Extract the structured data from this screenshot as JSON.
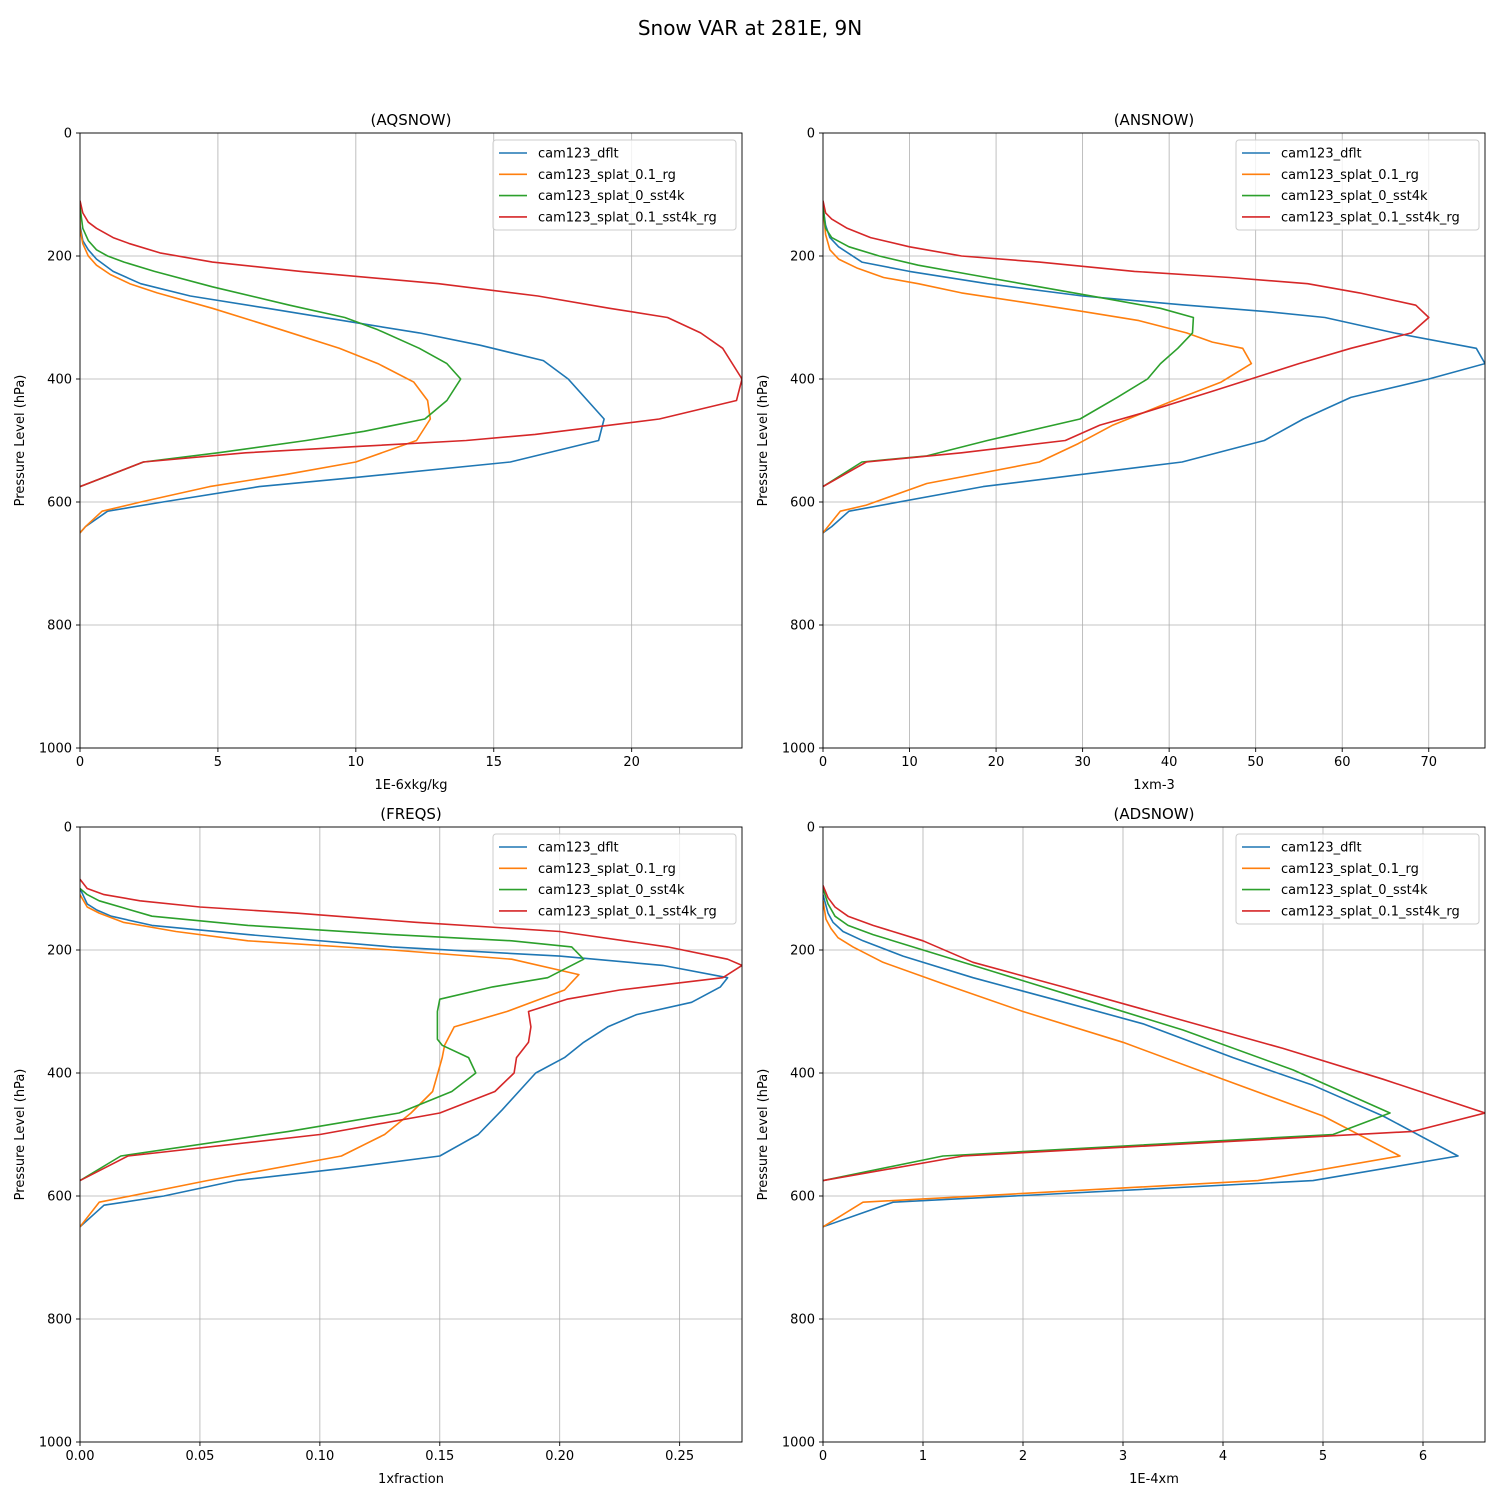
{
  "figure": {
    "title": "Snow VAR at 281E, 9N"
  },
  "colors": {
    "cam123_dflt": "#1f77b4",
    "cam123_splat_0.1_rg": "#ff7f0e",
    "cam123_splat_0_sst4k": "#2ca02c",
    "cam123_splat_0.1_sst4k_rg": "#d62728"
  },
  "chart_data": [
    {
      "type": "line",
      "title": "(AQSNOW)",
      "xlabel": "1E-6xkg/kg",
      "ylabel": "Pressure Level (hPa)",
      "xlim": [
        0,
        24
      ],
      "ylim": [
        1000,
        0
      ],
      "xticks": [
        0,
        5,
        10,
        15,
        20
      ],
      "yticks": [
        0,
        200,
        400,
        600,
        800,
        1000
      ],
      "grid": true,
      "legend": "top-right",
      "series": [
        {
          "name": "cam123_dflt",
          "x": [
            0,
            0,
            0.1,
            0.3,
            0.6,
            1.2,
            2.2,
            4.0,
            6.8,
            10.2,
            12.3,
            14.5,
            16.8,
            17.7,
            19.0,
            18.8,
            15.6,
            10.0,
            6.5,
            3.0,
            1.0,
            0.2,
            0
          ],
          "y": [
            120,
            150,
            175,
            190,
            205,
            225,
            245,
            265,
            285,
            310,
            325,
            345,
            370,
            400,
            465,
            500,
            535,
            560,
            575,
            600,
            615,
            640,
            650
          ]
        },
        {
          "name": "cam123_splat_0.1_rg",
          "x": [
            0,
            0,
            0.1,
            0.3,
            0.6,
            1.1,
            1.8,
            2.8,
            4.8,
            7.3,
            9.4,
            10.8,
            12.1,
            12.6,
            12.7,
            12.2,
            10.0,
            7.5,
            4.7,
            2.2,
            0.8,
            0.2,
            0
          ],
          "y": [
            120,
            155,
            180,
            200,
            215,
            230,
            245,
            260,
            285,
            320,
            350,
            375,
            405,
            435,
            465,
            500,
            535,
            555,
            575,
            600,
            615,
            640,
            650
          ]
        },
        {
          "name": "cam123_splat_0_sst4k",
          "x": [
            0,
            0.1,
            0.3,
            0.6,
            1.0,
            1.6,
            2.7,
            4.8,
            7.6,
            9.6,
            10.8,
            12.3,
            13.3,
            13.8,
            13.3,
            12.5,
            10.3,
            8.2,
            5.0,
            2.3,
            0
          ],
          "y": [
            120,
            155,
            175,
            190,
            200,
            210,
            225,
            250,
            280,
            300,
            320,
            350,
            375,
            400,
            435,
            465,
            485,
            500,
            520,
            535,
            575
          ]
        },
        {
          "name": "cam123_splat_0.1_sst4k_rg",
          "x": [
            0,
            0.1,
            0.3,
            0.6,
            1.2,
            1.8,
            2.9,
            4.8,
            8.0,
            13.0,
            16.6,
            19.2,
            21.3,
            22.5,
            23.3,
            24.0,
            23.8,
            21.0,
            16.5,
            14.0,
            10.0,
            6.0,
            2.3,
            0
          ],
          "y": [
            110,
            130,
            145,
            155,
            170,
            180,
            195,
            210,
            225,
            245,
            265,
            285,
            300,
            325,
            350,
            400,
            435,
            465,
            490,
            500,
            510,
            520,
            535,
            575
          ]
        }
      ]
    },
    {
      "type": "line",
      "title": "(ANSNOW)",
      "xlabel": "1xm-3",
      "ylabel": "Pressure Level (hPa)",
      "xlim": [
        0,
        76.5
      ],
      "ylim": [
        1000,
        0
      ],
      "xticks": [
        0,
        10,
        20,
        30,
        40,
        50,
        60,
        70
      ],
      "yticks": [
        0,
        200,
        400,
        600,
        800,
        1000
      ],
      "grid": true,
      "legend": "top-right",
      "series": [
        {
          "name": "cam123_dflt",
          "x": [
            0,
            0.3,
            0.8,
            1.8,
            4.5,
            10.0,
            19.0,
            30.0,
            42.0,
            51.0,
            58.0,
            66.0,
            75.5,
            76.5,
            70.0,
            61.0,
            55.5,
            51.0,
            41.5,
            18.5,
            3.0,
            1.0,
            0
          ],
          "y": [
            120,
            150,
            170,
            185,
            210,
            225,
            245,
            265,
            280,
            290,
            300,
            325,
            350,
            375,
            400,
            430,
            465,
            500,
            535,
            575,
            615,
            640,
            650
          ]
        },
        {
          "name": "cam123_splat_0.1_rg",
          "x": [
            0,
            0.3,
            0.8,
            1.8,
            4.0,
            7.0,
            11.0,
            16.0,
            23.0,
            30.0,
            36.5,
            42.0,
            45.0,
            48.5,
            49.5,
            46.0,
            40.5,
            33.5,
            29.5,
            25.0,
            12.0,
            5.0,
            2.0,
            0
          ],
          "y": [
            120,
            165,
            190,
            205,
            220,
            235,
            245,
            260,
            275,
            290,
            305,
            325,
            340,
            350,
            375,
            405,
            435,
            475,
            505,
            535,
            570,
            605,
            615,
            650
          ]
        },
        {
          "name": "cam123_splat_0_sst4k",
          "x": [
            0,
            0.3,
            1.0,
            3.0,
            6.5,
            11.0,
            17.0,
            25.0,
            33.0,
            39.0,
            42.8,
            42.7,
            41.0,
            39.0,
            37.5,
            34.0,
            29.7,
            19.0,
            12.0,
            4.5,
            0
          ],
          "y": [
            120,
            155,
            170,
            185,
            200,
            215,
            230,
            250,
            270,
            285,
            300,
            325,
            350,
            375,
            400,
            430,
            465,
            500,
            525,
            535,
            575
          ]
        },
        {
          "name": "cam123_splat_0.1_sst4k_rg",
          "x": [
            0,
            0.3,
            1.0,
            2.8,
            5.5,
            10.0,
            16.0,
            25.0,
            36.0,
            47.0,
            56.0,
            62.0,
            68.5,
            70.0,
            68.0,
            61.0,
            55.0,
            45.0,
            37.0,
            32.0,
            28.0,
            16.0,
            5.0,
            0
          ],
          "y": [
            110,
            130,
            140,
            155,
            170,
            185,
            200,
            210,
            225,
            235,
            245,
            260,
            280,
            300,
            325,
            350,
            375,
            420,
            455,
            475,
            500,
            520,
            535,
            575
          ]
        }
      ]
    },
    {
      "type": "line",
      "title": "(FREQS)",
      "xlabel": "1xfraction",
      "ylabel": "Pressure Level (hPa)",
      "xlim": [
        0,
        0.276
      ],
      "ylim": [
        1000,
        0
      ],
      "xticks": [
        0.0,
        0.05,
        0.1,
        0.15,
        0.2,
        0.25
      ],
      "yticks": [
        0,
        200,
        400,
        600,
        800,
        1000
      ],
      "grid": true,
      "legend": "top-right",
      "series": [
        {
          "name": "cam123_dflt",
          "x": [
            0,
            0.003,
            0.007,
            0.013,
            0.03,
            0.07,
            0.13,
            0.2,
            0.243,
            0.27,
            0.267,
            0.255,
            0.232,
            0.22,
            0.21,
            0.202,
            0.19,
            0.176,
            0.166,
            0.15,
            0.11,
            0.065,
            0.035,
            0.01,
            0
          ],
          "y": [
            100,
            125,
            135,
            145,
            160,
            175,
            195,
            210,
            225,
            245,
            260,
            285,
            305,
            325,
            350,
            375,
            400,
            460,
            500,
            535,
            555,
            575,
            600,
            615,
            650
          ]
        },
        {
          "name": "cam123_splat_0.1_rg",
          "x": [
            0,
            0.003,
            0.008,
            0.018,
            0.04,
            0.07,
            0.13,
            0.18,
            0.208,
            0.202,
            0.178,
            0.156,
            0.152,
            0.151,
            0.147,
            0.138,
            0.127,
            0.109,
            0.053,
            0.008,
            0
          ],
          "y": [
            110,
            130,
            140,
            155,
            170,
            185,
            200,
            215,
            240,
            265,
            300,
            325,
            355,
            375,
            430,
            465,
            500,
            535,
            575,
            610,
            650
          ]
        },
        {
          "name": "cam123_splat_0_sst4k",
          "x": [
            0,
            0.003,
            0.008,
            0.03,
            0.07,
            0.13,
            0.18,
            0.205,
            0.21,
            0.195,
            0.172,
            0.15,
            0.149,
            0.149,
            0.151,
            0.162,
            0.165,
            0.155,
            0.133,
            0.087,
            0.017,
            0
          ],
          "y": [
            100,
            110,
            120,
            145,
            160,
            175,
            185,
            195,
            215,
            245,
            260,
            280,
            300,
            345,
            355,
            375,
            400,
            430,
            465,
            495,
            535,
            575
          ]
        },
        {
          "name": "cam123_splat_0.1_sst4k_rg",
          "x": [
            0,
            0.003,
            0.01,
            0.025,
            0.05,
            0.09,
            0.14,
            0.2,
            0.245,
            0.27,
            0.276,
            0.268,
            0.225,
            0.203,
            0.187,
            0.188,
            0.187,
            0.182,
            0.181,
            0.173,
            0.15,
            0.1,
            0.02,
            0
          ],
          "y": [
            85,
            100,
            110,
            120,
            130,
            140,
            155,
            170,
            195,
            215,
            225,
            245,
            265,
            280,
            300,
            325,
            350,
            375,
            400,
            430,
            465,
            500,
            535,
            575
          ]
        }
      ]
    },
    {
      "type": "line",
      "title": "(ADSNOW)",
      "xlabel": "1E-4xm",
      "ylabel": "Pressure Level (hPa)",
      "xlim": [
        0,
        6.62
      ],
      "ylim": [
        1000,
        0
      ],
      "xticks": [
        0,
        1,
        2,
        3,
        4,
        5,
        6
      ],
      "yticks": [
        0,
        200,
        400,
        600,
        800,
        1000
      ],
      "grid": true,
      "legend": "top-right",
      "series": [
        {
          "name": "cam123_dflt",
          "x": [
            0,
            0.05,
            0.1,
            0.2,
            0.4,
            0.8,
            1.5,
            2.3,
            3.2,
            4.1,
            4.9,
            5.6,
            6.35,
            4.9,
            0.7,
            0
          ],
          "y": [
            110,
            140,
            155,
            170,
            185,
            210,
            245,
            280,
            320,
            375,
            420,
            470,
            535,
            575,
            610,
            650
          ]
        },
        {
          "name": "cam123_splat_0.1_rg",
          "x": [
            0,
            0.03,
            0.08,
            0.15,
            0.3,
            0.6,
            1.2,
            2.0,
            3.0,
            4.0,
            5.0,
            5.77,
            4.35,
            0.4,
            0
          ],
          "y": [
            120,
            150,
            165,
            180,
            195,
            220,
            255,
            300,
            350,
            410,
            470,
            535,
            575,
            610,
            650
          ]
        },
        {
          "name": "cam123_splat_0_sst4k",
          "x": [
            0,
            0.05,
            0.12,
            0.25,
            0.5,
            1.0,
            1.7,
            2.6,
            3.6,
            4.7,
            5.67,
            5.1,
            1.2,
            0
          ],
          "y": [
            100,
            125,
            145,
            160,
            175,
            200,
            235,
            280,
            330,
            395,
            465,
            500,
            535,
            575
          ]
        },
        {
          "name": "cam123_splat_0.1_sst4k_rg",
          "x": [
            0,
            0.05,
            0.12,
            0.25,
            0.5,
            1.0,
            1.5,
            2.4,
            3.5,
            4.6,
            5.6,
            6.62,
            5.9,
            1.4,
            0
          ],
          "y": [
            95,
            115,
            130,
            145,
            160,
            185,
            220,
            260,
            310,
            360,
            410,
            465,
            495,
            535,
            575
          ]
        }
      ]
    }
  ]
}
